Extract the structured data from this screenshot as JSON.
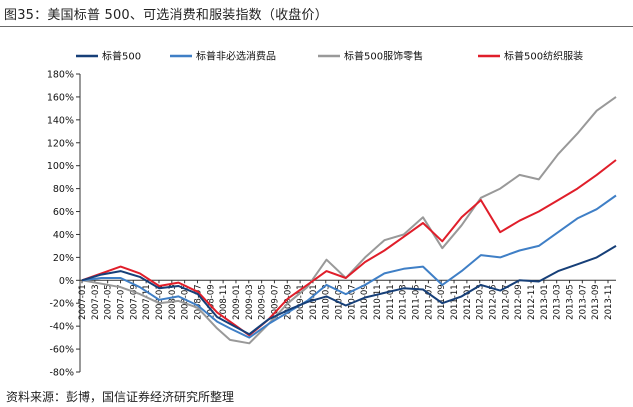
{
  "figure_title": "图35：美国标普 500、可选消费和服装指数（收盘价）",
  "source": "资料来源：彭博，国信证券经济研究所整理",
  "colors": {
    "sp500": "#163f78",
    "discretionary": "#3f7fc6",
    "retail": "#999999",
    "apparel": "#e01e2a"
  },
  "chart_data": {
    "type": "line",
    "title": "",
    "xlabel": "",
    "ylabel": "",
    "ylim": [
      -80,
      180
    ],
    "y_ticks": [
      -80,
      -60,
      -40,
      -20,
      0,
      20,
      40,
      60,
      80,
      100,
      120,
      140,
      160,
      180
    ],
    "y_tick_labels": [
      "-80%",
      "-60%",
      "-40%",
      "-20%",
      "0%",
      "20%",
      "40%",
      "60%",
      "80%",
      "100%",
      "120%",
      "140%",
      "160%",
      "180%"
    ],
    "x_tick_labels": [
      "2007-01",
      "2007-03",
      "2007-05",
      "2007-07",
      "2007-09",
      "2007-11",
      "2008-01",
      "2008-03",
      "2008-05",
      "2008-07",
      "2008-09",
      "2008-11",
      "2009-01",
      "2009-03",
      "2009-05",
      "2009-07",
      "2009-09",
      "2009-11",
      "2010-01",
      "2010-03",
      "2010-05",
      "2010-07",
      "2010-09",
      "2010-11",
      "2011-01",
      "2011-03",
      "2011-05",
      "2011-07",
      "2011-09",
      "2011-11",
      "2012-01",
      "2012-03",
      "2012-05",
      "2012-07",
      "2012-09",
      "2012-11",
      "2013-01",
      "2013-03",
      "2013-05",
      "2013-07",
      "2013-09",
      "2013-11"
    ],
    "legend_position": "top",
    "grid": false,
    "series": [
      {
        "name": "标普500",
        "color_key": "sp500",
        "x": [
          "2007-01",
          "2007-04",
          "2007-07",
          "2007-10",
          "2008-01",
          "2008-04",
          "2008-07",
          "2008-10",
          "2008-12",
          "2009-03",
          "2009-06",
          "2009-09",
          "2009-12",
          "2010-03",
          "2010-06",
          "2010-09",
          "2010-12",
          "2011-03",
          "2011-06",
          "2011-09",
          "2011-12",
          "2012-03",
          "2012-06",
          "2012-09",
          "2012-12",
          "2013-03",
          "2013-06",
          "2013-09",
          "2013-12"
        ],
        "values": [
          0,
          5,
          8,
          3,
          -7,
          -5,
          -12,
          -32,
          -38,
          -47,
          -34,
          -26,
          -19,
          -14,
          -22,
          -15,
          -11,
          -7,
          -8,
          -20,
          -14,
          -4,
          -9,
          0,
          -1,
          8,
          14,
          20,
          30
        ]
      },
      {
        "name": "标普非必选消费品",
        "color_key": "discretionary",
        "x": [
          "2007-01",
          "2007-04",
          "2007-07",
          "2007-10",
          "2008-01",
          "2008-04",
          "2008-07",
          "2008-10",
          "2008-12",
          "2009-03",
          "2009-06",
          "2009-09",
          "2009-12",
          "2010-03",
          "2010-06",
          "2010-09",
          "2010-12",
          "2011-03",
          "2011-06",
          "2011-09",
          "2011-12",
          "2012-03",
          "2012-06",
          "2012-09",
          "2012-12",
          "2013-03",
          "2013-06",
          "2013-09",
          "2013-12"
        ],
        "values": [
          0,
          2,
          2,
          -6,
          -17,
          -14,
          -22,
          -36,
          -42,
          -50,
          -38,
          -28,
          -18,
          -4,
          -12,
          -4,
          6,
          10,
          12,
          -4,
          8,
          22,
          20,
          26,
          30,
          42,
          54,
          62,
          74
        ]
      },
      {
        "name": "标普500服饰零售",
        "color_key": "retail",
        "x": [
          "2007-01",
          "2007-04",
          "2007-07",
          "2007-10",
          "2008-01",
          "2008-04",
          "2008-07",
          "2008-10",
          "2008-12",
          "2009-03",
          "2009-06",
          "2009-09",
          "2009-12",
          "2010-03",
          "2010-06",
          "2010-09",
          "2010-12",
          "2011-03",
          "2011-06",
          "2011-09",
          "2011-12",
          "2012-03",
          "2012-06",
          "2012-09",
          "2012-12",
          "2013-03",
          "2013-06",
          "2013-09",
          "2013-12"
        ],
        "values": [
          0,
          -3,
          -6,
          -12,
          -20,
          -18,
          -24,
          -42,
          -52,
          -55,
          -38,
          -20,
          -6,
          18,
          2,
          20,
          35,
          40,
          55,
          28,
          48,
          72,
          80,
          92,
          88,
          110,
          128,
          148,
          160
        ]
      },
      {
        "name": "标普500纺织服装",
        "color_key": "apparel",
        "x": [
          "2007-01",
          "2007-04",
          "2007-07",
          "2007-10",
          "2008-01",
          "2008-04",
          "2008-07",
          "2008-10",
          "2008-12",
          "2009-03",
          "2009-06",
          "2009-09",
          "2009-12",
          "2010-03",
          "2010-06",
          "2010-09",
          "2010-12",
          "2011-03",
          "2011-06",
          "2011-09",
          "2011-12",
          "2012-03",
          "2012-06",
          "2012-09",
          "2012-12",
          "2013-03",
          "2013-06",
          "2013-09",
          "2013-12"
        ],
        "values": [
          0,
          6,
          12,
          6,
          -5,
          -2,
          -10,
          -28,
          -36,
          -48,
          -34,
          -16,
          -4,
          8,
          2,
          16,
          26,
          38,
          50,
          34,
          55,
          70,
          42,
          52,
          60,
          70,
          80,
          92,
          105
        ]
      }
    ]
  }
}
